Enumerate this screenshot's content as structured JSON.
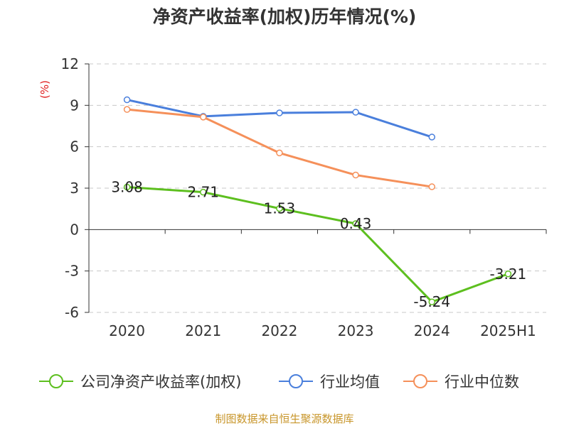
{
  "chart_data": {
    "type": "line",
    "title": "净资产收益率(加权)历年情况(%)",
    "ylabel": "(%)",
    "xlabel": "",
    "categories": [
      "2020",
      "2021",
      "2022",
      "2023",
      "2024",
      "2025H1"
    ],
    "ylim": [
      -6,
      12
    ],
    "yticks": [
      -6,
      -3,
      0,
      3,
      6,
      9,
      12
    ],
    "ytick_labels": [
      "-6",
      "-3",
      "0",
      "3",
      "6",
      "9",
      "12"
    ],
    "grid": "horizontal-dashed",
    "legend_position": "bottom",
    "series": [
      {
        "name": "公司净资产收益率(加权)",
        "color": "#5dbf1f",
        "values": [
          3.08,
          2.71,
          1.53,
          0.43,
          -5.24,
          -3.21
        ],
        "labels": [
          "3.08",
          "2.71",
          "1.53",
          "0.43",
          "-5.24",
          "-3.21"
        ]
      },
      {
        "name": "行业均值",
        "color": "#4a7fdc",
        "values": [
          9.4,
          8.2,
          8.45,
          8.5,
          6.7,
          null
        ]
      },
      {
        "name": "行业中位数",
        "color": "#f5905a",
        "values": [
          8.7,
          8.15,
          5.55,
          3.95,
          3.1,
          null
        ]
      }
    ]
  },
  "footer": {
    "source": "制图数据来自恒生聚源数据库"
  }
}
